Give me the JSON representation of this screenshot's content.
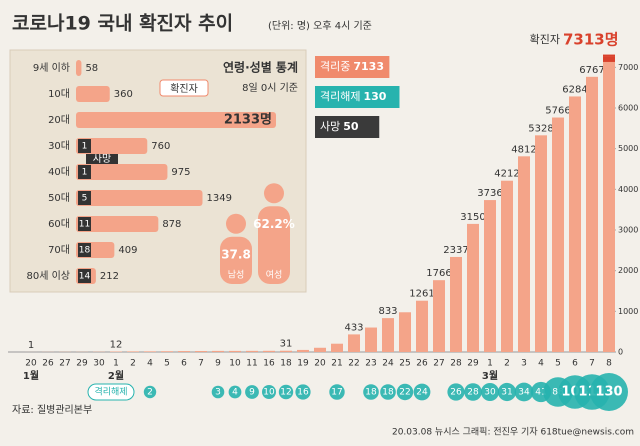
{
  "title": "코로나19 국내 확진자 추이",
  "subtitle": "(단위: 명) 오후 4시 기준",
  "source": "자료: 질병관리본부",
  "credit": "20.03.08 뉴시스 그래픽: 전진우 기자 618tue@newsis.com",
  "chart_data": [
    {
      "type": "bar",
      "categories": [
        "20",
        "26",
        "27",
        "29",
        "30",
        "1",
        "2",
        "4",
        "5",
        "6",
        "7",
        "9",
        "10",
        "11",
        "16",
        "18",
        "19",
        "20",
        "21",
        "22",
        "23",
        "24",
        "25",
        "26",
        "27",
        "28",
        "29",
        "1",
        "2",
        "3",
        "4",
        "5",
        "6",
        "7",
        "8"
      ],
      "months": [
        "1월",
        "2월",
        "3월"
      ],
      "series": [
        {
          "name": "확진자",
          "color": "#f4a489",
          "values": [
            1,
            3,
            4,
            4,
            6,
            12,
            15,
            16,
            19,
            23,
            24,
            27,
            27,
            28,
            29,
            31,
            51,
            104,
            204,
            433,
            602,
            833,
            977,
            1261,
            1766,
            2337,
            3150,
            3736,
            4212,
            4812,
            5328,
            5766,
            6284,
            6767,
            7313
          ],
          "value_labels": [
            "1",
            null,
            null,
            null,
            null,
            "12",
            null,
            null,
            null,
            null,
            null,
            null,
            null,
            null,
            null,
            "31",
            null,
            null,
            null,
            "433",
            null,
            "833",
            null,
            "1261",
            "1766",
            "2337",
            "3150",
            "3736",
            "4212",
            "4812",
            "5328",
            "5766",
            "6284",
            "6767",
            "7313명"
          ]
        },
        {
          "name": "격리해제",
          "color": "#27b3ae",
          "values": [
            null,
            null,
            null,
            null,
            null,
            null,
            null,
            2,
            null,
            null,
            null,
            3,
            4,
            9,
            10,
            12,
            16,
            null,
            17,
            null,
            18,
            18,
            22,
            24,
            null,
            26,
            28,
            30,
            31,
            34,
            41,
            88,
            108,
            118,
            130
          ]
        }
      ],
      "status": [
        {
          "name": "격리중",
          "value": 7133,
          "color": "#f08a6c"
        },
        {
          "name": "격리해제",
          "value": 130,
          "color": "#27b3ae"
        },
        {
          "name": "사망",
          "value": 50,
          "color": "#3a3a3a"
        }
      ],
      "ylim": [
        0,
        7500
      ],
      "yticks": [
        0,
        1000,
        2000,
        3000,
        4000,
        5000,
        6000,
        7000
      ]
    },
    {
      "type": "hbar",
      "title": "연령·성별 통계",
      "subtitle": "8일 0시 기준",
      "categories": [
        "9세 이하",
        "10대",
        "20대",
        "30대",
        "40대",
        "50대",
        "60대",
        "70대",
        "80세 이상"
      ],
      "series": [
        {
          "name": "확진자",
          "color": "#f4a489",
          "values": [
            58,
            360,
            2133,
            760,
            975,
            1349,
            878,
            409,
            212
          ],
          "value_labels": [
            "58",
            "360",
            "2133명",
            "760",
            "975",
            "1349",
            "878",
            "409",
            "212"
          ]
        },
        {
          "name": "사망",
          "color": "#333333",
          "values": [
            null,
            null,
            null,
            1,
            1,
            5,
            11,
            18,
            14
          ]
        }
      ]
    },
    {
      "type": "figure",
      "categories": [
        "남성",
        "여성"
      ],
      "values": [
        37.8,
        62.2
      ],
      "value_labels": [
        "37.8",
        "62.2%"
      ],
      "color": "#f4a489"
    }
  ]
}
